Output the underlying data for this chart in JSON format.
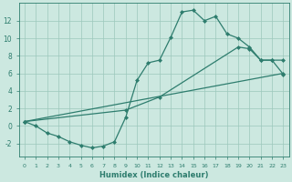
{
  "line1_x": [
    0,
    1,
    2,
    3,
    4,
    5,
    6,
    7,
    8,
    9,
    10,
    11,
    12,
    13,
    14,
    15,
    16,
    17,
    18,
    19,
    20,
    21,
    22,
    23
  ],
  "line1_y": [
    0.5,
    0.0,
    -0.8,
    -1.2,
    -1.8,
    -2.2,
    -2.5,
    -2.3,
    -1.8,
    1.0,
    5.2,
    7.2,
    7.5,
    10.1,
    13.0,
    13.2,
    12.0,
    12.5,
    10.5,
    10.0,
    9.0,
    7.5,
    7.5,
    7.5
  ],
  "line2_x": [
    0,
    23
  ],
  "line2_y": [
    0.5,
    6.0
  ],
  "line3_x": [
    0,
    9,
    12,
    19,
    20,
    21,
    22,
    23
  ],
  "line3_y": [
    0.5,
    1.8,
    3.3,
    9.0,
    8.8,
    7.5,
    7.5,
    5.9
  ],
  "line_color": "#2e7d6e",
  "bg_color": "#cce8e0",
  "grid_color": "#9cc8bc",
  "xlabel": "Humidex (Indice chaleur)",
  "xlim": [
    -0.5,
    23.5
  ],
  "ylim": [
    -3.5,
    14.0
  ],
  "xticks": [
    0,
    1,
    2,
    3,
    4,
    5,
    6,
    7,
    8,
    9,
    10,
    11,
    12,
    13,
    14,
    15,
    16,
    17,
    18,
    19,
    20,
    21,
    22,
    23
  ],
  "yticks": [
    -2,
    0,
    2,
    4,
    6,
    8,
    10,
    12
  ],
  "marker": "D",
  "markersize": 2.0,
  "linewidth": 0.9
}
